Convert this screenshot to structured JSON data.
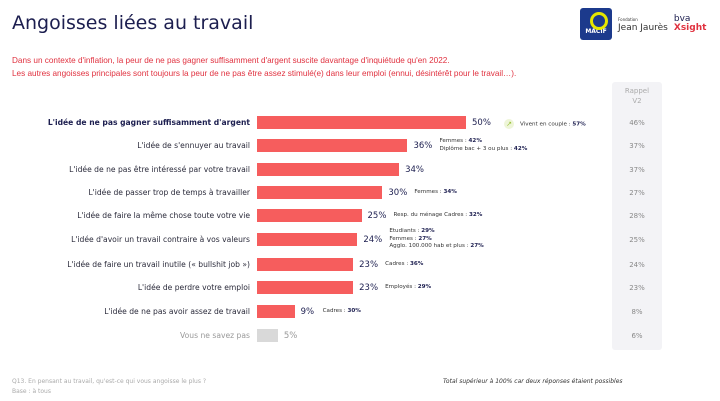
{
  "title": "Angoisses liées au travail",
  "subtitle": [
    "Dans un contexte d'inflation, la peur de ne pas gagner suffisamment d'argent suscite davantage d'inquiétude qu'en 2022.",
    "Les autres angoisses principales sont toujours la peur de ne pas être assez stimulé(e) dans leur emploi (ennui, désintérêt pour le travail…)."
  ],
  "logos": {
    "macif": "MACIF",
    "jj_small": "Fondation",
    "jj": "Jean Jaurès",
    "bva": "bva",
    "xsight": "Xsight"
  },
  "colors": {
    "bar": "#f65d5d",
    "bar_nsp": "#d9d9d9",
    "subtitle": "#e0313f"
  },
  "chart_data": {
    "type": "bar",
    "orientation": "horizontal",
    "xlim": [
      0,
      100
    ],
    "rappel_header": [
      "Rappel",
      "V2"
    ],
    "categories": [
      "L'idée de ne pas gagner suffisamment d'argent",
      "L'idée de s'ennuyer au travail",
      "L'idée de ne pas être intéressé par votre travail",
      "L'idée de passer trop de temps à travailler",
      "L'idée de faire la même chose toute votre vie",
      "L'idée d'avoir un travail contraire à vos valeurs",
      "L'idée de faire un travail inutile (« bullshit job »)",
      "L'idée de perdre votre emploi",
      "L'idée de ne pas avoir assez de travail",
      "Vous ne savez pas"
    ],
    "values": [
      50,
      36,
      34,
      30,
      25,
      24,
      23,
      23,
      9,
      5
    ],
    "value_labels": [
      "50%",
      "36%",
      "34%",
      "30%",
      "25%",
      "24%",
      "23%",
      "23%",
      "9%",
      "5%"
    ],
    "rappel_v2": [
      "46%",
      "37%",
      "37%",
      "27%",
      "28%",
      "25%",
      "24%",
      "23%",
      "8%",
      "6%"
    ],
    "trend_up": [
      true,
      false,
      false,
      false,
      false,
      false,
      false,
      false,
      false,
      false
    ],
    "notes": [
      [
        {
          "k": "Vivent en couple :",
          "v": "57%"
        }
      ],
      [
        {
          "k": "Femmes :",
          "v": "42%"
        },
        {
          "k": "Diplôme bac + 3 ou plus :",
          "v": "42%"
        }
      ],
      [],
      [
        {
          "k": "Femmes :",
          "v": "34%"
        }
      ],
      [
        {
          "k": "Resp. du ménage Cadres :",
          "v": "32%"
        }
      ],
      [
        {
          "k": "Etudiants :",
          "v": "29%"
        },
        {
          "k": "Femmes :",
          "v": "27%"
        },
        {
          "k": "Agglo. 100.000 hab et plus :",
          "v": "27%"
        }
      ],
      [
        {
          "k": "Cadres :",
          "v": "36%"
        }
      ],
      [
        {
          "k": "Employés :",
          "v": "29%"
        }
      ],
      [
        {
          "k": "Cadres :",
          "v": "30%"
        }
      ],
      []
    ]
  },
  "footer": {
    "question": "Q13. En pensant au travail, qu'est-ce qui vous angoisse le plus ?",
    "base": "Base : à tous",
    "total_note": "Total supérieur à 100% car deux réponses étaient possibles"
  }
}
